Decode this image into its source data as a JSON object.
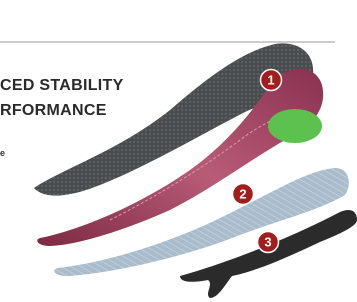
{
  "headline": {
    "lines": [
      "CED STABILITY",
      "RFORMANCE"
    ]
  },
  "caption": "e",
  "badges": [
    "1",
    "2",
    "3"
  ]
}
